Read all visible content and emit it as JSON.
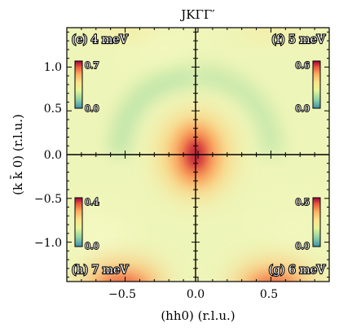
{
  "chart_data": {
    "type": "heatmap",
    "title": "JKΓΓ′",
    "xlabel": "(hh0) (r.l.u.)",
    "ylabel": "(k k̄ 0) (r.l.u.)",
    "xlim": [
      -0.9,
      0.9
    ],
    "ylim": [
      -1.45,
      1.45
    ],
    "x_ticks": [
      "−0.5",
      "0.0",
      "0.5"
    ],
    "y_ticks": [
      "1.0",
      "0.5",
      "0.0",
      "−0.5",
      "−1.0"
    ],
    "x_tick_values": [
      -0.5,
      0.0,
      0.5
    ],
    "y_tick_values": [
      1.0,
      0.5,
      0.0,
      -0.5,
      -1.0
    ],
    "colormap": "spectral_r",
    "panels": [
      {
        "label": "(e) 4 meV",
        "quadrant": "top-left",
        "cbar_max": "0.7",
        "cbar_min": "0.0",
        "peak": "ring around Γ with intensity at the center"
      },
      {
        "label": "(f) 5 meV",
        "quadrant": "top-right",
        "cbar_max": "0.6",
        "cbar_min": "0.0",
        "peak": "ring around Γ"
      },
      {
        "label": "(h) 7 meV",
        "quadrant": "bottom-left",
        "cbar_max": "0.4",
        "cbar_min": "0.0",
        "peak": "intensity at the bottom corner"
      },
      {
        "label": "(g) 6 meV",
        "quadrant": "bottom-right",
        "cbar_max": "0.5",
        "cbar_min": "0.0",
        "peak": "intensity at the bottom corner"
      }
    ]
  }
}
